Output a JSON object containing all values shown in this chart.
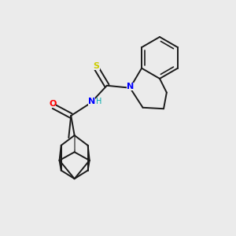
{
  "bg_color": "#ebebeb",
  "bond_color": "#1a1a1a",
  "atom_colors": {
    "N": "#0000ff",
    "O": "#ff0000",
    "S": "#cccc00",
    "H": "#00aaaa",
    "C": "#1a1a1a"
  },
  "line_width": 1.4,
  "figsize": [
    3.0,
    3.0
  ],
  "dpi": 100
}
